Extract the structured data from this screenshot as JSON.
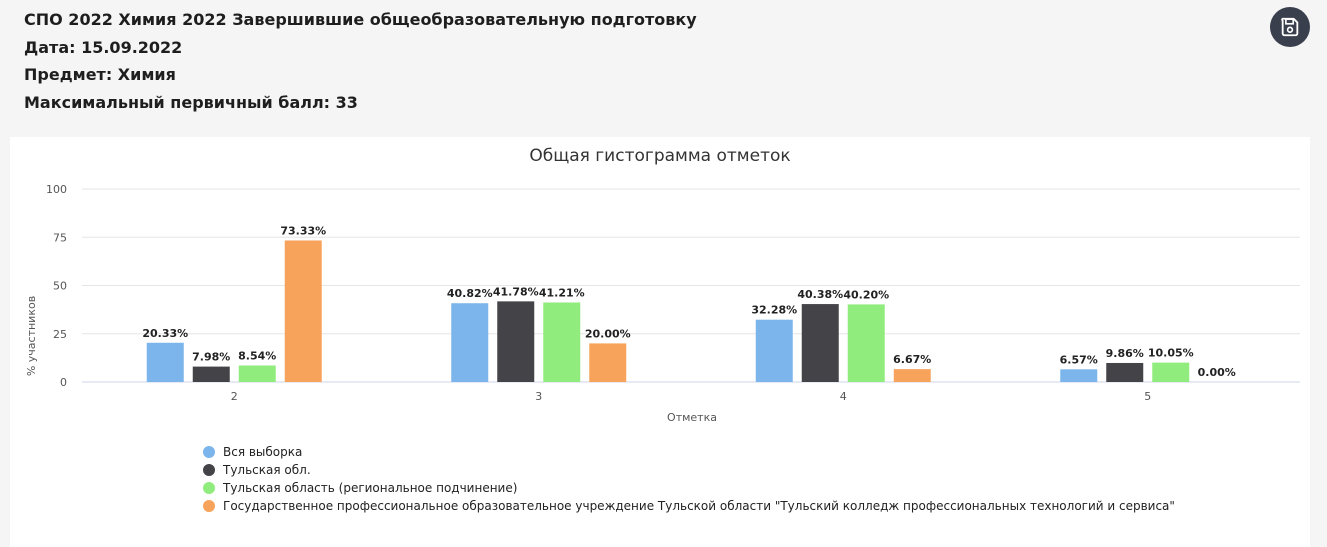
{
  "header": {
    "title": "СПО 2022 Химия 2022 Завершившие общеобразовательную подготовку",
    "date": "Дата: 15.09.2022",
    "subject": "Предмет: Химия",
    "max_score": "Максимальный первичный балл: 33"
  },
  "toolbar": {
    "save_icon": "save-icon"
  },
  "colors": {
    "series": [
      "#7cb5ec",
      "#434348",
      "#90ed7d",
      "#f7a35c"
    ],
    "save_button_bg": "#3a3f4d"
  },
  "chart_data": {
    "type": "bar",
    "title": "Общая гистограмма отметок",
    "xlabel": "Отметка",
    "ylabel": "% участников",
    "ylim": [
      0,
      100
    ],
    "yticks": [
      0,
      25,
      50,
      75,
      100
    ],
    "categories": [
      "2",
      "3",
      "4",
      "5"
    ],
    "series": [
      {
        "name": "Вся выборка",
        "values": [
          20.33,
          40.82,
          32.28,
          6.57
        ],
        "labels": [
          "20.33%",
          "40.82%",
          "32.28%",
          "6.57%"
        ]
      },
      {
        "name": "Тульская обл.",
        "values": [
          7.98,
          41.78,
          40.38,
          9.86
        ],
        "labels": [
          "7.98%",
          "41.78%",
          "40.38%",
          "9.86%"
        ]
      },
      {
        "name": "Тульская область (региональное подчинение)",
        "values": [
          8.54,
          41.21,
          40.2,
          10.05
        ],
        "labels": [
          "8.54%",
          "41.21%",
          "40.20%",
          "10.05%"
        ]
      },
      {
        "name": "Государственное профессиональное образовательное учреждение Тульской области \"Тульский колледж профессиональных технологий и сервиса\"",
        "values": [
          73.33,
          20.0,
          6.67,
          0.0
        ],
        "labels": [
          "73.33%",
          "20.00%",
          "6.67%",
          "0.00%"
        ]
      }
    ],
    "grid": true,
    "legend_position": "bottom-left"
  }
}
